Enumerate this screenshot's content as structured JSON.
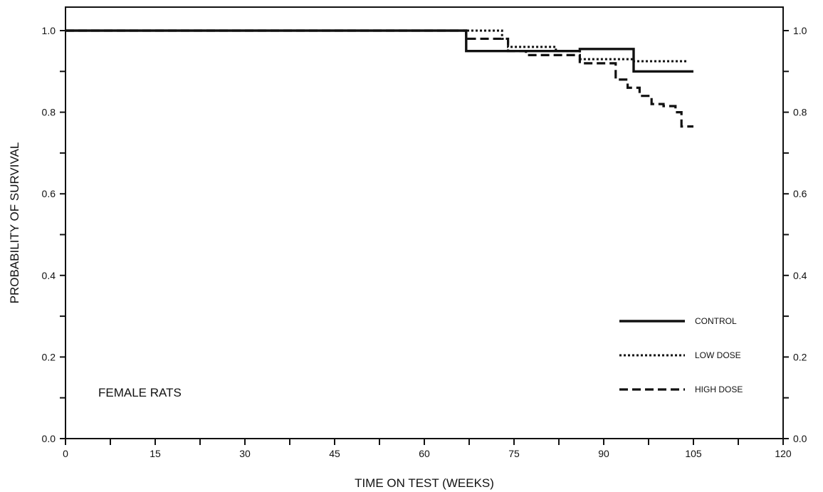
{
  "chart_data": {
    "type": "line",
    "step": true,
    "xlabel": "TIME ON TEST (WEEKS)",
    "ylabel": "PROBABILITY OF SURVIVAL",
    "xlim": [
      0,
      120
    ],
    "ylim": [
      0.0,
      1.0
    ],
    "x_ticks": [
      0,
      15,
      30,
      45,
      60,
      75,
      90,
      105,
      120
    ],
    "y_ticks": [
      0.0,
      0.2,
      0.4,
      0.6,
      0.8,
      1.0
    ],
    "x_tick_labels": [
      "0",
      "15",
      "30",
      "45",
      "60",
      "75",
      "90",
      "105",
      "120"
    ],
    "y_tick_labels": [
      "0.0",
      "0.2",
      "0.4",
      "0.6",
      "0.8",
      "1.0"
    ],
    "right_axis": true,
    "grid": false,
    "annotation": "FEMALE RATS",
    "legend_position": "bottom-right",
    "series": [
      {
        "name": "CONTROL",
        "style": "solid",
        "x": [
          0,
          67,
          86,
          95,
          105
        ],
        "y": [
          1.0,
          0.95,
          0.955,
          0.9,
          0.9
        ]
      },
      {
        "name": "LOW DOSE",
        "style": "dotted",
        "x": [
          0,
          68,
          73,
          74,
          77,
          82,
          86,
          95,
          104
        ],
        "y": [
          1.0,
          1.0,
          0.98,
          0.96,
          0.96,
          0.95,
          0.93,
          0.925,
          0.925
        ]
      },
      {
        "name": "HIGH DOSE",
        "style": "dashed",
        "x": [
          0,
          67,
          74,
          77,
          86,
          92,
          94,
          96,
          98,
          100,
          102,
          103,
          105
        ],
        "y": [
          1.0,
          0.98,
          0.95,
          0.94,
          0.92,
          0.88,
          0.86,
          0.84,
          0.82,
          0.815,
          0.8,
          0.765,
          0.765
        ]
      }
    ]
  }
}
